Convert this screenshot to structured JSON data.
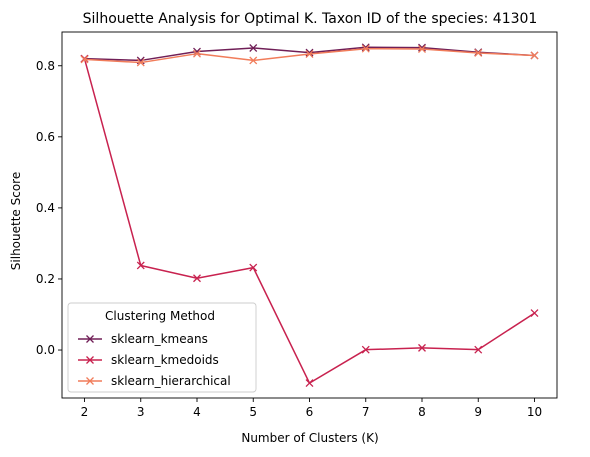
{
  "chart_data": {
    "type": "line",
    "title": "Silhouette Analysis for Optimal K. Taxon ID of the species: 41301",
    "xlabel": "Number of Clusters (K)",
    "ylabel": "Silhouette Score",
    "x": [
      2,
      3,
      4,
      5,
      6,
      7,
      8,
      9,
      10
    ],
    "xlim": [
      1.6,
      10.4
    ],
    "ylim": [
      -0.135,
      0.895
    ],
    "xticks": [
      "2",
      "3",
      "4",
      "5",
      "6",
      "7",
      "8",
      "9",
      "10"
    ],
    "yticks": [
      "0.0",
      "0.2",
      "0.4",
      "0.6",
      "0.8"
    ],
    "ytick_values": [
      0.0,
      0.2,
      0.4,
      0.6,
      0.8
    ],
    "grid": false,
    "marker": "x",
    "legend": {
      "title": "Clustering Method",
      "position": "lower-left"
    },
    "series": [
      {
        "name": "sklearn_kmeans",
        "color": "#701f57",
        "values": [
          0.82,
          0.815,
          0.84,
          0.85,
          0.837,
          0.852,
          0.851,
          0.838,
          0.829
        ]
      },
      {
        "name": "sklearn_kmedoids",
        "color": "#c8224f",
        "values": [
          0.82,
          0.238,
          0.202,
          0.232,
          -0.093,
          0.001,
          0.006,
          0.001,
          0.104
        ]
      },
      {
        "name": "sklearn_hierarchical",
        "color": "#f17c5a",
        "values": [
          0.818,
          0.809,
          0.834,
          0.815,
          0.833,
          0.848,
          0.847,
          0.836,
          0.829
        ]
      }
    ]
  }
}
